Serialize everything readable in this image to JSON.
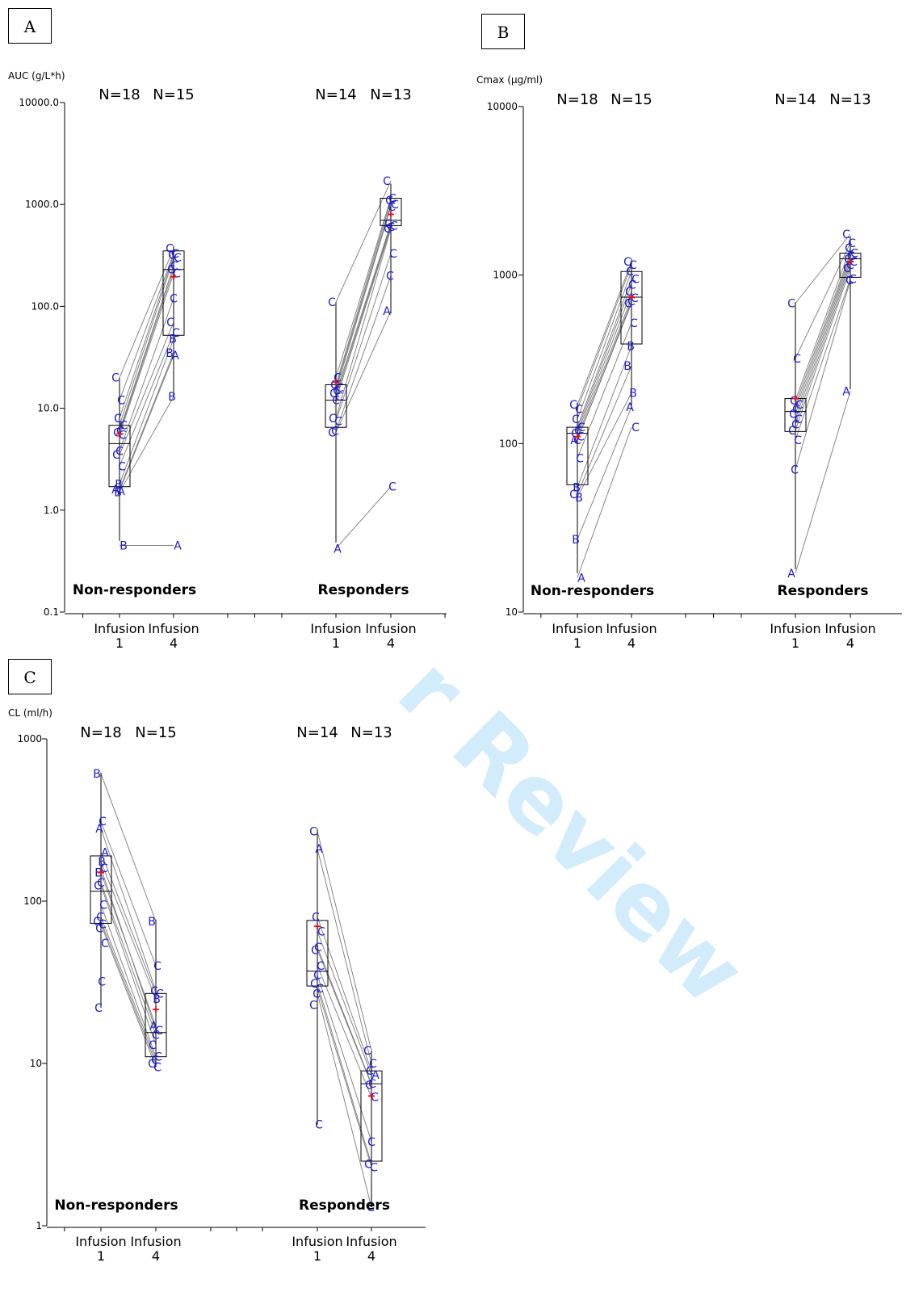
{
  "watermark": "r Review",
  "chart_data": [
    {
      "type": "box",
      "panel_label": "A",
      "ylabel": "AUC (g/L*h)",
      "scale": "log",
      "ylim": [
        0.1,
        10000
      ],
      "yticks": [
        0.1,
        1,
        10,
        100,
        1000,
        10000
      ],
      "ytick_labels": [
        "0.1",
        "1.0",
        "10.0",
        "100.0",
        "1000.0",
        "10000.0"
      ],
      "x_tick_labels": [
        [
          "Infusion",
          "1"
        ],
        [
          "Infusion",
          "4"
        ],
        [
          "Infusion",
          "1"
        ],
        [
          "Infusion",
          "4"
        ]
      ],
      "groups": [
        {
          "label": "Non-responders",
          "n": [
            "N=18",
            "N=15"
          ],
          "boxes": [
            {
              "q1": 1.7,
              "median": 4.5,
              "q3": 6.8,
              "min": 0.5,
              "max": 20,
              "mean": 5.6
            },
            {
              "q1": 52,
              "median": 230,
              "q3": 350,
              "min": 13,
              "max": 390,
              "mean": 195
            }
          ],
          "points": [
            [
              {
                "l": "C",
                "v": 20
              },
              {
                "l": "C",
                "v": 12
              },
              {
                "l": "C",
                "v": 8
              },
              {
                "l": "C",
                "v": 6.8
              },
              {
                "l": "C",
                "v": 6
              },
              {
                "l": "C",
                "v": 5.8
              },
              {
                "l": "C",
                "v": 5.5
              },
              {
                "l": "C",
                "v": 3.8
              },
              {
                "l": "C",
                "v": 3.5
              },
              {
                "l": "C",
                "v": 2.7
              },
              {
                "l": "B",
                "v": 1.8
              },
              {
                "l": "A",
                "v": 1.6
              },
              {
                "l": "A",
                "v": 1.55
              },
              {
                "l": "B",
                "v": 1.5
              },
              {
                "l": "B",
                "v": 0.45
              }
            ],
            [
              {
                "l": "C",
                "v": 370
              },
              {
                "l": "C",
                "v": 330
              },
              {
                "l": "C",
                "v": 320
              },
              {
                "l": "C",
                "v": 300
              },
              {
                "l": "C",
                "v": 250
              },
              {
                "l": "C",
                "v": 230
              },
              {
                "l": "C",
                "v": 210
              },
              {
                "l": "C",
                "v": 120
              },
              {
                "l": "C",
                "v": 70
              },
              {
                "l": "C",
                "v": 55
              },
              {
                "l": "B",
                "v": 48
              },
              {
                "l": "B",
                "v": 35
              },
              {
                "l": "A",
                "v": 33
              },
              {
                "l": "B",
                "v": 13
              },
              {
                "l": "A",
                "v": 0.45
              }
            ]
          ]
        },
        {
          "label": "Responders",
          "n": [
            "N=14",
            "N=13"
          ],
          "boxes": [
            {
              "q1": 6.5,
              "median": 12,
              "q3": 17,
              "min": 0.48,
              "max": 110,
              "mean": 18
            },
            {
              "q1": 620,
              "median": 700,
              "q3": 1150,
              "min": 85,
              "max": 1600,
              "mean": 800
            }
          ],
          "points": [
            [
              {
                "l": "C",
                "v": 110
              },
              {
                "l": "C",
                "v": 20
              },
              {
                "l": "C",
                "v": 17
              },
              {
                "l": "C",
                "v": 16
              },
              {
                "l": "C",
                "v": 15
              },
              {
                "l": "C",
                "v": 14
              },
              {
                "l": "C",
                "v": 13
              },
              {
                "l": "C",
                "v": 12
              },
              {
                "l": "C",
                "v": 8
              },
              {
                "l": "C",
                "v": 7.5
              },
              {
                "l": "C",
                "v": 6
              },
              {
                "l": "C",
                "v": 5.8
              },
              {
                "l": "A",
                "v": 0.42
              }
            ],
            [
              {
                "l": "C",
                "v": 1700
              },
              {
                "l": "C",
                "v": 1150
              },
              {
                "l": "C",
                "v": 1100
              },
              {
                "l": "C",
                "v": 1000
              },
              {
                "l": "C",
                "v": 950
              },
              {
                "l": "C",
                "v": 650
              },
              {
                "l": "C",
                "v": 620
              },
              {
                "l": "C",
                "v": 600
              },
              {
                "l": "C",
                "v": 580
              },
              {
                "l": "C",
                "v": 330
              },
              {
                "l": "C",
                "v": 200
              },
              {
                "l": "A",
                "v": 90
              },
              {
                "l": "C",
                "v": 1.7
              }
            ]
          ]
        }
      ]
    },
    {
      "type": "box",
      "panel_label": "B",
      "ylabel": "Cmax (µg/ml)",
      "scale": "log",
      "ylim": [
        10,
        10000
      ],
      "yticks": [
        10,
        100,
        1000,
        10000
      ],
      "ytick_labels": [
        "10",
        "100",
        "1000",
        "10000"
      ],
      "x_tick_labels": [
        [
          "Infusion",
          "1"
        ],
        [
          "Infusion",
          "4"
        ],
        [
          "Infusion",
          "1"
        ],
        [
          "Infusion",
          "4"
        ]
      ],
      "groups": [
        {
          "label": "Non-responders",
          "n": [
            "N=18",
            "N=15"
          ],
          "boxes": [
            {
              "q1": 57,
              "median": 115,
              "q3": 125,
              "min": 17,
              "max": 175,
              "mean": 110
            },
            {
              "q1": 390,
              "median": 740,
              "q3": 1050,
              "min": 160,
              "max": 1250,
              "mean": 740
            }
          ],
          "points": [
            [
              {
                "l": "C",
                "v": 170
              },
              {
                "l": "C",
                "v": 160
              },
              {
                "l": "C",
                "v": 140
              },
              {
                "l": "C",
                "v": 125
              },
              {
                "l": "C",
                "v": 120
              },
              {
                "l": "C",
                "v": 115
              },
              {
                "l": "C",
                "v": 110
              },
              {
                "l": "C",
                "v": 105
              },
              {
                "l": "A",
                "v": 105
              },
              {
                "l": "C",
                "v": 82
              },
              {
                "l": "B",
                "v": 55
              },
              {
                "l": "C",
                "v": 50
              },
              {
                "l": "B",
                "v": 48
              },
              {
                "l": "B",
                "v": 27
              },
              {
                "l": "A",
                "v": 16
              }
            ],
            [
              {
                "l": "C",
                "v": 1200
              },
              {
                "l": "C",
                "v": 1150
              },
              {
                "l": "C",
                "v": 1050
              },
              {
                "l": "C",
                "v": 950
              },
              {
                "l": "C",
                "v": 880
              },
              {
                "l": "C",
                "v": 800
              },
              {
                "l": "C",
                "v": 730
              },
              {
                "l": "C",
                "v": 700
              },
              {
                "l": "C",
                "v": 680
              },
              {
                "l": "C",
                "v": 520
              },
              {
                "l": "B",
                "v": 380
              },
              {
                "l": "B",
                "v": 290
              },
              {
                "l": "B",
                "v": 200
              },
              {
                "l": "A",
                "v": 165
              },
              {
                "l": "C",
                "v": 125
              }
            ]
          ]
        },
        {
          "label": "Responders",
          "n": [
            "N=14",
            "N=13"
          ],
          "boxes": [
            {
              "q1": 118,
              "median": 155,
              "q3": 185,
              "min": 18,
              "max": 690,
              "mean": 185
            },
            {
              "q1": 970,
              "median": 1250,
              "q3": 1350,
              "min": 210,
              "max": 1700,
              "mean": 1200
            }
          ],
          "points": [
            [
              {
                "l": "C",
                "v": 680
              },
              {
                "l": "C",
                "v": 320
              },
              {
                "l": "C",
                "v": 180
              },
              {
                "l": "C",
                "v": 170
              },
              {
                "l": "C",
                "v": 160
              },
              {
                "l": "C",
                "v": 150
              },
              {
                "l": "C",
                "v": 140
              },
              {
                "l": "C",
                "v": 130
              },
              {
                "l": "C",
                "v": 120
              },
              {
                "l": "C",
                "v": 105
              },
              {
                "l": "C",
                "v": 70
              },
              {
                "l": "A",
                "v": 17
              }
            ],
            [
              {
                "l": "C",
                "v": 1750
              },
              {
                "l": "C",
                "v": 1550
              },
              {
                "l": "C",
                "v": 1450
              },
              {
                "l": "C",
                "v": 1350
              },
              {
                "l": "C",
                "v": 1300
              },
              {
                "l": "C",
                "v": 1250
              },
              {
                "l": "C",
                "v": 1200
              },
              {
                "l": "C",
                "v": 1150
              },
              {
                "l": "C",
                "v": 1100
              },
              {
                "l": "C",
                "v": 950
              },
              {
                "l": "C",
                "v": 930
              },
              {
                "l": "A",
                "v": 205
              }
            ]
          ]
        }
      ]
    },
    {
      "type": "box",
      "panel_label": "C",
      "ylabel": "CL (ml/h)",
      "scale": "log",
      "ylim": [
        1,
        1000
      ],
      "yticks": [
        1,
        10,
        100,
        1000
      ],
      "ytick_labels": [
        "1",
        "10",
        "100",
        "1000"
      ],
      "x_tick_labels": [
        [
          "Infusion",
          "1"
        ],
        [
          "Infusion",
          "4"
        ],
        [
          "Infusion",
          "1"
        ],
        [
          "Infusion",
          "4"
        ]
      ],
      "groups": [
        {
          "label": "Non-responders",
          "n": [
            "N=18",
            "N=15"
          ],
          "boxes": [
            {
              "q1": 73,
              "median": 115,
              "q3": 190,
              "min": 22,
              "max": 620,
              "mean": 150
            },
            {
              "q1": 11,
              "median": 15.5,
              "q3": 27,
              "min": 9.5,
              "max": 77,
              "mean": 21.5
            }
          ],
          "points": [
            [
              {
                "l": "B",
                "v": 610
              },
              {
                "l": "C",
                "v": 310
              },
              {
                "l": "A",
                "v": 280
              },
              {
                "l": "A",
                "v": 200
              },
              {
                "l": "B",
                "v": 175
              },
              {
                "l": "B",
                "v": 150
              },
              {
                "l": "C",
                "v": 160
              },
              {
                "l": "C",
                "v": 130
              },
              {
                "l": "C",
                "v": 125
              },
              {
                "l": "C",
                "v": 95
              },
              {
                "l": "C",
                "v": 80
              },
              {
                "l": "C",
                "v": 75
              },
              {
                "l": "C",
                "v": 72
              },
              {
                "l": "C",
                "v": 68
              },
              {
                "l": "C",
                "v": 55
              },
              {
                "l": "C",
                "v": 32
              },
              {
                "l": "C",
                "v": 22
              }
            ],
            [
              {
                "l": "B",
                "v": 75
              },
              {
                "l": "C",
                "v": 40
              },
              {
                "l": "C",
                "v": 28
              },
              {
                "l": "C",
                "v": 27
              },
              {
                "l": "B",
                "v": 25
              },
              {
                "l": "A",
                "v": 17
              },
              {
                "l": "C",
                "v": 16
              },
              {
                "l": "C",
                "v": 15
              },
              {
                "l": "C",
                "v": 13
              },
              {
                "l": "C",
                "v": 11
              },
              {
                "l": "C",
                "v": 10.5
              },
              {
                "l": "C",
                "v": 10
              },
              {
                "l": "C",
                "v": 9.5
              }
            ]
          ]
        },
        {
          "label": "Responders",
          "n": [
            "N=14",
            "N=13"
          ],
          "boxes": [
            {
              "q1": 30,
              "median": 37,
              "q3": 76,
              "min": 4.2,
              "max": 280,
              "mean": 70
            },
            {
              "q1": 2.5,
              "median": 7.5,
              "q3": 9,
              "min": 1.3,
              "max": 12,
              "mean": 6.3
            }
          ],
          "points": [
            [
              {
                "l": "C",
                "v": 270
              },
              {
                "l": "A",
                "v": 210
              },
              {
                "l": "C",
                "v": 80
              },
              {
                "l": "C",
                "v": 65
              },
              {
                "l": "C",
                "v": 52
              },
              {
                "l": "C",
                "v": 50
              },
              {
                "l": "C",
                "v": 40
              },
              {
                "l": "C",
                "v": 35
              },
              {
                "l": "C",
                "v": 31
              },
              {
                "l": "C",
                "v": 29
              },
              {
                "l": "C",
                "v": 27
              },
              {
                "l": "C",
                "v": 23
              },
              {
                "l": "C",
                "v": 4.2
              }
            ],
            [
              {
                "l": "C",
                "v": 12
              },
              {
                "l": "C",
                "v": 10
              },
              {
                "l": "C",
                "v": 9
              },
              {
                "l": "A",
                "v": 8.5
              },
              {
                "l": "C",
                "v": 7.5
              },
              {
                "l": "C",
                "v": 7.4
              },
              {
                "l": "C",
                "v": 6.2
              },
              {
                "l": "C",
                "v": 3.3
              },
              {
                "l": "C",
                "v": 2.4
              },
              {
                "l": "C",
                "v": 2.3
              },
              {
                "l": "C",
                "v": 1.3
              }
            ]
          ]
        }
      ]
    }
  ]
}
